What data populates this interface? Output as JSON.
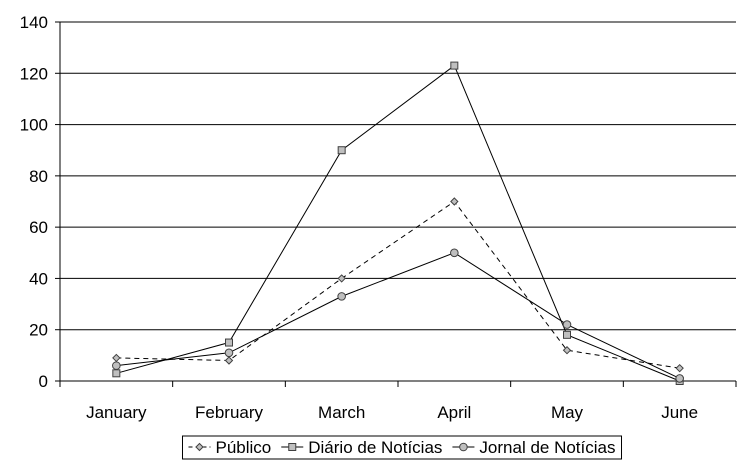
{
  "chart_data": {
    "type": "line",
    "categories": [
      "January",
      "February",
      "March",
      "April",
      "May",
      "June"
    ],
    "series": [
      {
        "name": "Público",
        "values": [
          9,
          8,
          40,
          70,
          12,
          5
        ],
        "line_style": "dashed",
        "marker": "diamond"
      },
      {
        "name": "Diário de Notícias",
        "values": [
          3,
          15,
          90,
          123,
          18,
          0
        ],
        "line_style": "solid",
        "marker": "square"
      },
      {
        "name": "Jornal de Notícias",
        "values": [
          6,
          11,
          33,
          50,
          22,
          1
        ],
        "line_style": "solid",
        "marker": "circle"
      }
    ],
    "ylim": [
      0,
      140
    ],
    "yticks": [
      "0",
      "20",
      "40",
      "60",
      "80",
      "100",
      "120",
      "140"
    ],
    "grid": "horizontal",
    "legend_position": "bottom",
    "title": "",
    "xlabel": "",
    "ylabel": "",
    "colors": {
      "line": "#000000",
      "grid": "#000000",
      "marker_fill": "#bfbfbf",
      "marker_stroke": "#404040"
    }
  }
}
